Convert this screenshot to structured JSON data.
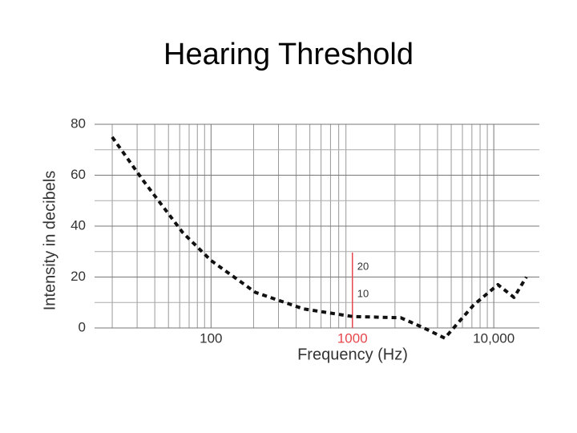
{
  "chart_data": {
    "type": "line",
    "title": "Hearing Threshold",
    "xlabel": "Frequency (Hz)",
    "ylabel": "Intensity in decibels",
    "x": [
      20,
      33,
      63,
      100,
      206,
      450,
      1000,
      2200,
      3200,
      4500,
      7200,
      10700,
      13900,
      17000
    ],
    "values": [
      75,
      58,
      37.5,
      26.5,
      14,
      7.5,
      4.5,
      4,
      0,
      -4,
      9,
      17,
      12,
      20
    ],
    "color": "#111111",
    "xscale": "log",
    "xlim": [
      15,
      21000
    ],
    "ylim": [
      0,
      80
    ],
    "xticks": [
      100,
      1000,
      {
        "value": 10000,
        "label": "10,000"
      }
    ],
    "xminor": [
      20,
      30,
      40,
      50,
      60,
      70,
      80,
      90,
      200,
      300,
      400,
      500,
      600,
      700,
      800,
      900,
      2000,
      3000,
      4000,
      5000,
      6000,
      7000,
      8000,
      9000
    ],
    "yticks": [
      0,
      20,
      40,
      60,
      80
    ],
    "yminor": [
      10,
      30,
      50,
      70
    ],
    "grid": true,
    "highlight_xtick_index": 1,
    "highlight_color": "#e8474c",
    "annotations": [
      "20",
      "10"
    ]
  }
}
